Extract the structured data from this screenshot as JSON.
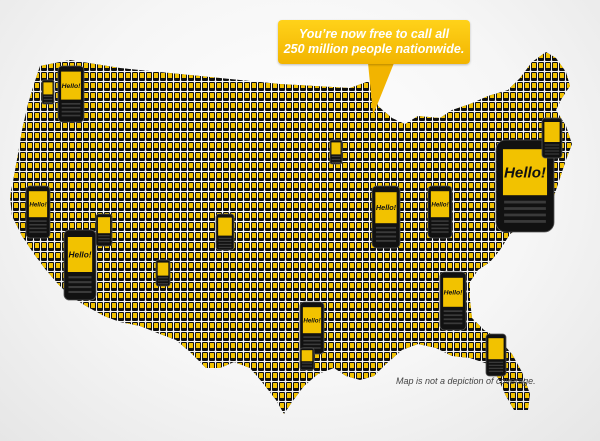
{
  "speech_bubble": {
    "line1": "You’re now free to call all",
    "line2": "250 million people nationwide."
  },
  "map": {
    "phone_screen_text": "Hello!",
    "phone_color": "#111111",
    "screen_color": "#f2c200",
    "accent_color": "#f2b400"
  },
  "disclaimer": "Map is not a depiction of coverage.",
  "icons": [
    "phone-icon",
    "speech-bubble-icon"
  ]
}
